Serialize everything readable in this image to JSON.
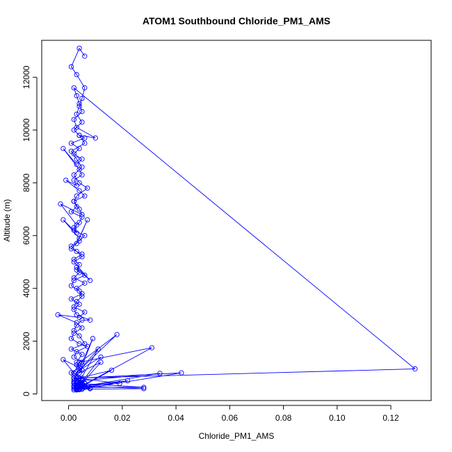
{
  "chart_data": {
    "type": "line",
    "title": "ATOM1 Southbound Chloride_PM1_AMS",
    "xlabel": "Chloride_PM1_AMS",
    "ylabel": "Altitude (m)",
    "xlim": [
      -0.01,
      0.135
    ],
    "ylim": [
      -250,
      13400
    ],
    "x_ticks": [
      0.0,
      0.02,
      0.04,
      0.06,
      0.08,
      0.1,
      0.12
    ],
    "x_tick_labels": [
      "0.00",
      "0.02",
      "0.04",
      "0.06",
      "0.08",
      "0.10",
      "0.12"
    ],
    "y_ticks": [
      0,
      2000,
      4000,
      6000,
      8000,
      10000,
      12000
    ],
    "y_tick_labels": [
      "0",
      "2000",
      "4000",
      "6000",
      "8000",
      "10000",
      "12000"
    ],
    "grid": false,
    "marker": "open-circle",
    "series": [
      {
        "color": "#0000ff",
        "x": [
          0.006,
          0.004,
          0.001,
          0.003,
          0.006,
          0.005,
          0.004,
          0.003,
          0.005,
          0.002,
          0.004,
          0.006,
          0.001,
          0.004,
          0.002,
          0.005,
          0.003,
          -0.002,
          0.004,
          0.005,
          0.002,
          0.003,
          -0.001,
          0.004,
          0.006,
          0.002,
          0.003,
          0.001,
          0.005,
          0.004,
          0.002,
          0.003,
          -0.002,
          0.004,
          0.007,
          0.003,
          0.001,
          0.005,
          0.002,
          0.004,
          0.003,
          0.006,
          0.002,
          0.001,
          0.004,
          0.005,
          0.003,
          0.002,
          0.006,
          0.004,
          -0.004,
          0.003,
          0.005,
          0.002,
          0.001,
          0.004,
          0.007,
          0.003,
          0.002,
          0.005,
          0.004,
          0.001,
          0.003,
          0.006,
          0.002,
          0.004,
          0.008,
          0.003,
          0.005,
          0.002,
          -0.002,
          0.004,
          0.003,
          0.005,
          0.001,
          0.006,
          0.004,
          0.002,
          0.003,
          0.005,
          0.008,
          0.003,
          0.002,
          0.004,
          0.001,
          0.005,
          0.003,
          0.006,
          0.002,
          0.004,
          0.003,
          0.008,
          0.002,
          0.005,
          0.003,
          0.001,
          0.004,
          0.006,
          0.002,
          0.003,
          -0.003,
          0.005,
          0.004,
          0.002,
          0.003,
          0.007,
          0.004,
          0.002,
          0.005,
          0.003,
          0.001,
          0.006,
          0.004,
          0.01,
          0.003,
          0.002,
          0.005,
          0.004,
          0.003,
          0.002,
          0.129,
          0.003,
          0.005,
          0.002,
          0.004,
          0.006,
          0.003,
          0.002,
          0.004,
          0.018,
          0.003,
          0.005,
          0.002,
          0.004,
          0.006,
          0.003,
          0.031,
          0.004,
          0.002,
          0.005,
          0.003,
          0.011,
          0.004,
          0.002,
          0.006,
          0.003,
          0.034,
          0.005,
          0.002,
          0.004,
          0.003,
          0.042,
          0.004,
          0.002,
          0.005,
          0.003,
          0.012,
          0.004,
          0.002,
          0.006,
          0.003,
          0.028,
          0.004,
          0.002,
          0.005,
          0.003,
          0.016,
          0.004,
          0.002,
          0.006,
          0.003,
          0.022,
          0.004,
          0.002,
          0.005,
          0.003,
          0.019,
          0.004,
          0.008,
          0.002,
          0.005,
          0.003,
          0.028,
          0.004,
          0.002,
          0.006,
          0.003,
          0.012,
          0.004,
          0.009,
          0.002,
          0.005,
          0.003,
          0.004,
          0.002,
          0.003
        ],
        "y": [
          12800,
          13100,
          12400,
          12100,
          11600,
          11200,
          10900,
          10600,
          10300,
          10000,
          9800,
          9700,
          9500,
          9300,
          9100,
          8900,
          8700,
          9300,
          8500,
          8300,
          8100,
          7900,
          8100,
          7700,
          7500,
          7300,
          7100,
          6900,
          6700,
          6500,
          6300,
          6100,
          6600,
          5900,
          6600,
          5700,
          5500,
          5300,
          5100,
          4900,
          4700,
          4500,
          4300,
          4100,
          3900,
          3700,
          3500,
          3300,
          3100,
          2900,
          3000,
          2700,
          2500,
          2300,
          2100,
          1900,
          1800,
          1600,
          1400,
          1200,
          1000,
          800,
          600,
          400,
          300,
          200,
          200,
          400,
          600,
          800,
          1300,
          1000,
          1200,
          1500,
          1700,
          1900,
          2200,
          2400,
          2600,
          2800,
          2800,
          3000,
          3200,
          3400,
          3600,
          3800,
          4000,
          4200,
          4400,
          4600,
          4800,
          4300,
          5000,
          5200,
          5400,
          5600,
          5800,
          6000,
          6200,
          6400,
          7200,
          6800,
          7000,
          7300,
          7500,
          7800,
          8000,
          8300,
          8600,
          8900,
          9200,
          9500,
          9800,
          9700,
          10100,
          10400,
          10700,
          11000,
          11300,
          11600,
          950,
          600,
          400,
          250,
          180,
          300,
          500,
          700,
          900,
          2250,
          1100,
          900,
          600,
          400,
          250,
          200,
          1750,
          1200,
          800,
          500,
          300,
          1700,
          900,
          600,
          400,
          250,
          780,
          500,
          300,
          200,
          150,
          800,
          600,
          400,
          250,
          180,
          1400,
          900,
          600,
          400,
          250,
          250,
          400,
          300,
          200,
          180,
          900,
          600,
          400,
          300,
          200,
          500,
          300,
          200,
          180,
          600,
          400,
          300,
          220,
          400,
          250,
          180,
          200,
          300,
          450,
          250,
          180,
          1200,
          800,
          2100,
          500,
          300,
          200,
          160,
          150,
          170
        ]
      }
    ]
  }
}
